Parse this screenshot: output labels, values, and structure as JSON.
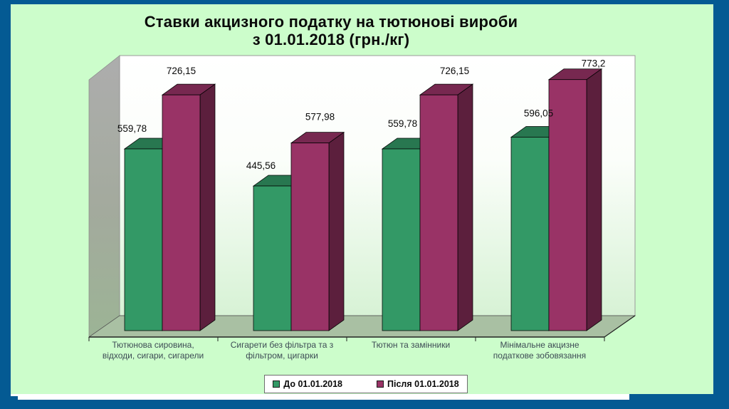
{
  "palette": {
    "frame_blue": "#045a93",
    "slide_green": "#ccfdcb",
    "plot_floor_green": "#a9c0a3",
    "plot_wall_gray": "#a9a9a9",
    "series_before": "#339966",
    "series_after": "#993366"
  },
  "slide": {
    "title_line1": "Ставки акцизного податку на тютюнові вироби",
    "title_line2": "з 01.01.2018 (грн./кг)"
  },
  "chart_data": {
    "type": "bar",
    "style": "3d-clustered",
    "title": "Ставки акцизного податку на тютюнові вироби з 01.01.2018 (грн./кг)",
    "categories": [
      "Тютюнова сировина,\nвідходи, сигари, сигарели",
      "Сигарети без фільтра та з\nфільтром, цигарки",
      "Тютюн та замінники",
      "Мінімальне акцизне\nподаткове зобовязання"
    ],
    "series": [
      {
        "name": "До 01.01.2018",
        "color": "#339966",
        "values": [
          559.78,
          445.56,
          559.78,
          596.05
        ],
        "labels": [
          "559,78",
          "445,56",
          "559,78",
          "596,05"
        ]
      },
      {
        "name": "Після 01.01.2018",
        "color": "#993366",
        "values": [
          726.15,
          577.98,
          726.15,
          773.2
        ],
        "labels": [
          "726,15",
          "577,98",
          "726,15",
          "773,2"
        ]
      }
    ],
    "ylim": [
      0,
      800
    ],
    "grid": false,
    "legend_position": "bottom",
    "legend_entries": [
      "До 01.01.2018",
      "Після 01.01.2018"
    ],
    "value_label_decimal_separator": ","
  }
}
